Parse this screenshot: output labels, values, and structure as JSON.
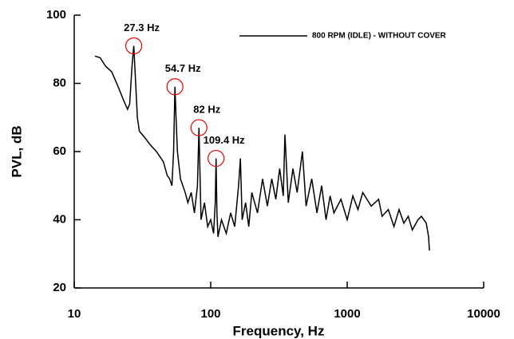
{
  "chart_data": {
    "type": "line",
    "xlabel": "Frequency, Hz",
    "ylabel": "PVL, dB",
    "xscale": "log",
    "xlim": [
      10,
      10000
    ],
    "ylim": [
      20,
      100
    ],
    "xticks": [
      10,
      100,
      1000,
      10000
    ],
    "yticks": [
      20,
      40,
      60,
      80,
      100
    ],
    "legend": "upper right",
    "x": [
      14.2,
      15.5,
      17,
      18.8,
      21,
      23,
      24.6,
      25.5,
      26.5,
      27.3,
      28.2,
      29,
      30,
      33,
      36,
      40,
      45,
      48,
      50,
      52,
      53.5,
      54.7,
      56,
      57,
      60,
      65,
      68,
      72,
      76,
      80,
      82,
      84,
      85,
      90,
      95,
      100,
      105,
      108,
      109.4,
      111,
      113,
      120,
      130,
      140,
      150,
      160,
      165,
      170,
      180,
      190,
      200,
      220,
      240,
      260,
      280,
      300,
      320,
      340,
      350,
      370,
      400,
      430,
      470,
      500,
      550,
      600,
      650,
      700,
      750,
      800,
      900,
      1000,
      1100,
      1200,
      1300,
      1500,
      1700,
      1800,
      2000,
      2200,
      2400,
      2600,
      2800,
      3000,
      3300,
      3500,
      3800,
      3950,
      4000
    ],
    "series": [
      {
        "name": "800 RPM (IDLE) - WITHOUT COVER",
        "color": "#000000",
        "values": [
          88,
          87.5,
          85,
          83.4,
          79,
          75,
          72.4,
          74,
          85,
          91,
          80,
          70,
          66,
          64,
          62,
          60,
          57,
          53,
          52,
          50,
          60,
          79,
          68,
          60,
          52,
          48,
          45,
          48,
          42,
          50,
          67,
          48,
          40,
          45,
          38,
          40,
          36,
          45,
          58,
          42,
          35,
          40,
          36,
          42,
          38,
          50,
          58,
          40,
          45,
          38,
          48,
          42,
          52,
          44,
          52,
          46,
          55,
          47,
          65,
          45,
          55,
          48,
          60,
          44,
          52,
          42,
          50,
          40,
          47,
          42,
          46,
          40,
          47,
          43,
          48,
          44,
          46,
          41,
          43,
          38,
          43,
          39,
          41,
          37,
          40,
          41,
          39,
          35,
          31
        ]
      }
    ],
    "annotations": [
      {
        "text": "27.3 Hz",
        "x": 27.3,
        "y": 91
      },
      {
        "text": "54.7 Hz",
        "x": 54.7,
        "y": 79
      },
      {
        "text": "82 Hz",
        "x": 82,
        "y": 67
      },
      {
        "text": "109.4 Hz",
        "x": 109.4,
        "y": 58
      }
    ]
  }
}
